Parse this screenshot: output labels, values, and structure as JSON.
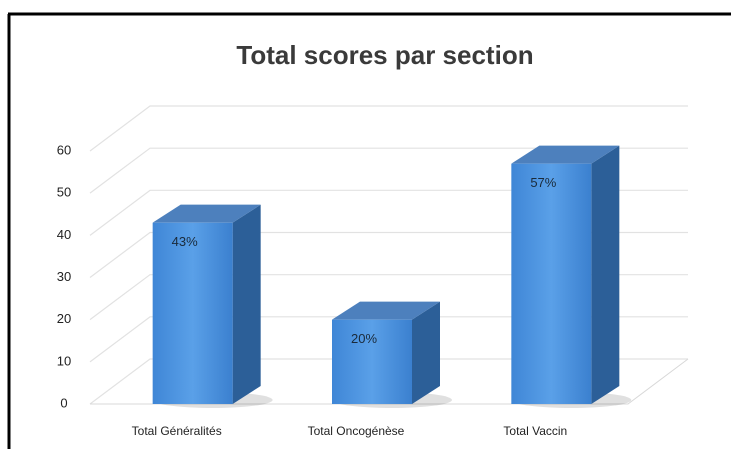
{
  "chart_data": {
    "type": "bar3d",
    "title": "Total scores par section",
    "categories": [
      "Total Généralités",
      "Total Oncogénèse",
      "Total Vaccin"
    ],
    "values": [
      43,
      20,
      57
    ],
    "value_labels": [
      "43%",
      "20%",
      "57%"
    ],
    "color": "#4a90dc",
    "ylim": [
      0,
      60
    ],
    "yticks": [
      0,
      10,
      20,
      30,
      40,
      50,
      60
    ],
    "grid": true
  }
}
